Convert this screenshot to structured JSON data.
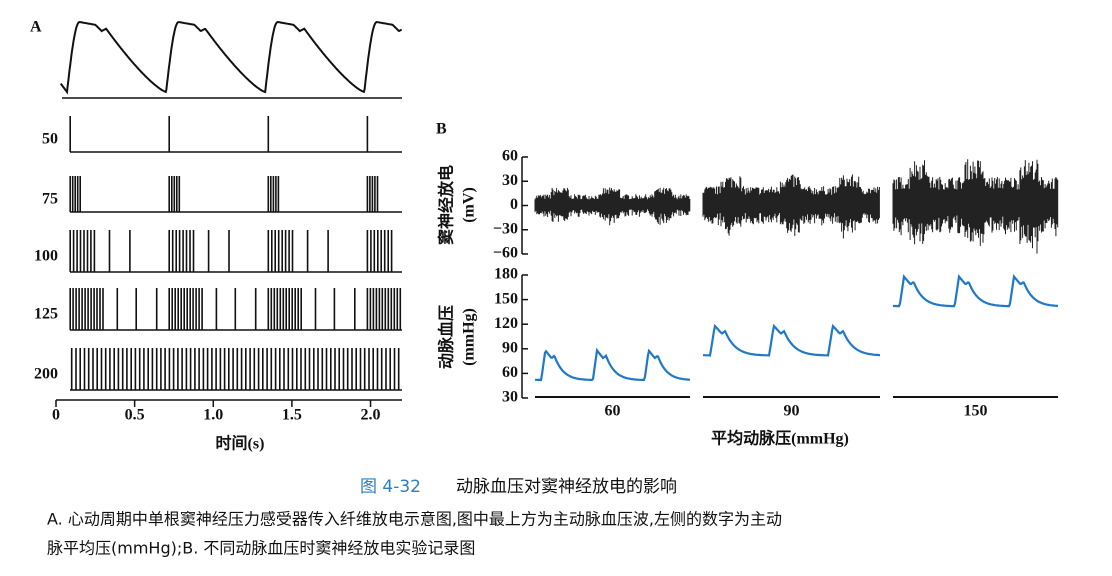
{
  "panel_a": {
    "label": "A",
    "pressures": [
      50,
      75,
      100,
      125,
      200
    ],
    "x_axis": {
      "label": "时间(s)",
      "xlim": [
        0,
        2.2
      ],
      "xticks": [
        0,
        0.5,
        {
          "value": 1,
          "label": "1.0"
        },
        1.5,
        {
          "value": 2,
          "label": "2.0"
        }
      ]
    }
  },
  "panel_b": {
    "label": "B",
    "nerve": {
      "ylabel": [
        "窦神经放电",
        "(mV)"
      ],
      "ylim": [
        -60,
        60
      ],
      "yticks": [
        60,
        30,
        0,
        {
          "value": -30,
          "label": "−30"
        },
        {
          "value": -60,
          "label": "−60"
        }
      ]
    },
    "pressure": {
      "ylabel": [
        "动脉血压",
        "(mmHg)"
      ],
      "ylim": [
        30,
        180
      ],
      "yticks": [
        180,
        150,
        120,
        90,
        60,
        30
      ]
    },
    "groups": [
      60,
      90,
      150
    ],
    "xlabel": "平均动脉压(mmHg)"
  },
  "caption": {
    "number": "图 4-32",
    "title": "动脉血压对窦神经放电的影响",
    "lines": [
      "A. 心动周期中单根窦神经压力感受器传入纤维放电示意图,图中最上方为主动脉血压波,左侧的数字为主动",
      "脉平均压(mmHg);B. 不同动脉血压时窦神经放电实验记录图"
    ]
  }
}
